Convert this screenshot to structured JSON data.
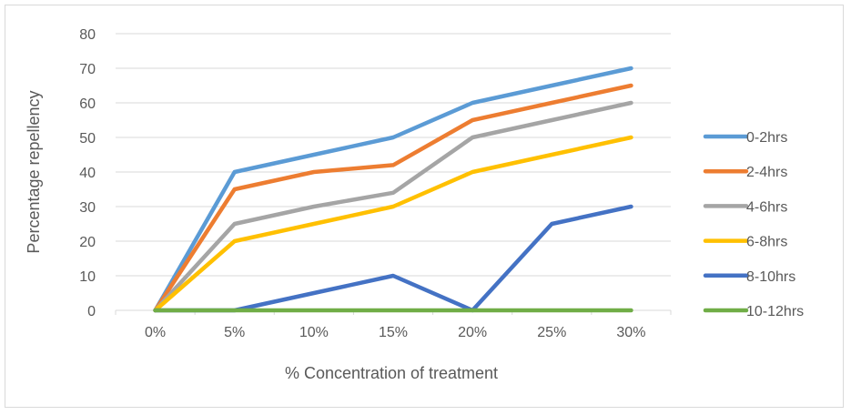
{
  "chart_data": {
    "type": "line",
    "categories": [
      "0%",
      "5%",
      "10%",
      "15%",
      "20%",
      "25%",
      "30%"
    ],
    "series": [
      {
        "name": "0-2hrs",
        "color": "#5B9BD5",
        "values": [
          0,
          40,
          45,
          50,
          60,
          65,
          70
        ]
      },
      {
        "name": "2-4hrs",
        "color": "#ED7D31",
        "values": [
          0,
          35,
          40,
          42,
          55,
          60,
          65
        ]
      },
      {
        "name": "4-6hrs",
        "color": "#A5A5A5",
        "values": [
          0,
          25,
          30,
          34,
          50,
          55,
          60
        ]
      },
      {
        "name": "6-8hrs",
        "color": "#FFC000",
        "values": [
          0,
          20,
          25,
          30,
          40,
          45,
          50
        ]
      },
      {
        "name": "8-10hrs",
        "color": "#4472C4",
        "values": [
          0,
          0,
          5,
          10,
          0,
          25,
          30
        ]
      },
      {
        "name": "10-12hrs",
        "color": "#70AD47",
        "values": [
          0,
          0,
          0,
          0,
          0,
          0,
          0
        ]
      }
    ],
    "title": "",
    "xlabel": "% Concentration of treatment",
    "ylabel": "Percentage repellency",
    "ylim": [
      0,
      80
    ],
    "yticks": [
      0,
      10,
      20,
      30,
      40,
      50,
      60,
      70,
      80
    ],
    "grid": true,
    "legend_position": "right"
  }
}
